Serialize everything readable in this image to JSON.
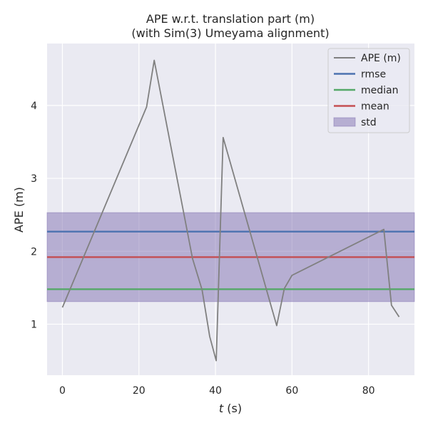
{
  "chart_data": {
    "type": "line",
    "title_line1": "APE w.r.t. translation part (m)",
    "title_line2": "(with Sim(3) Umeyama alignment)",
    "xlabel_var": "t",
    "xlabel_unit": " (s)",
    "ylabel": "APE (m)",
    "xlim": [
      -4,
      92
    ],
    "ylim": [
      0.3,
      4.85
    ],
    "xticks": [
      0,
      20,
      40,
      60,
      80
    ],
    "yticks": [
      1,
      2,
      3,
      4
    ],
    "grid": true,
    "legend_position": "top-right",
    "background_color": "#eaeaf2",
    "series": [
      {
        "name": "APE (m)",
        "color": "#808080",
        "x": [
          0,
          22,
          24,
          34,
          36.5,
          38.5,
          40.2,
          42,
          56,
          58,
          60,
          84,
          86,
          88
        ],
        "y": [
          1.23,
          3.98,
          4.62,
          1.9,
          1.47,
          0.83,
          0.5,
          3.56,
          0.98,
          1.49,
          1.67,
          2.3,
          1.26,
          1.1
        ]
      }
    ],
    "reference_lines": [
      {
        "name": "rmse",
        "value": 2.27,
        "color": "#4c72b0"
      },
      {
        "name": "median",
        "value": 1.48,
        "color": "#55a868"
      },
      {
        "name": "mean",
        "value": 1.92,
        "color": "#c44e52"
      }
    ],
    "std_band": {
      "name": "std",
      "lower": 1.31,
      "upper": 2.53,
      "color": "#8172b2"
    }
  }
}
